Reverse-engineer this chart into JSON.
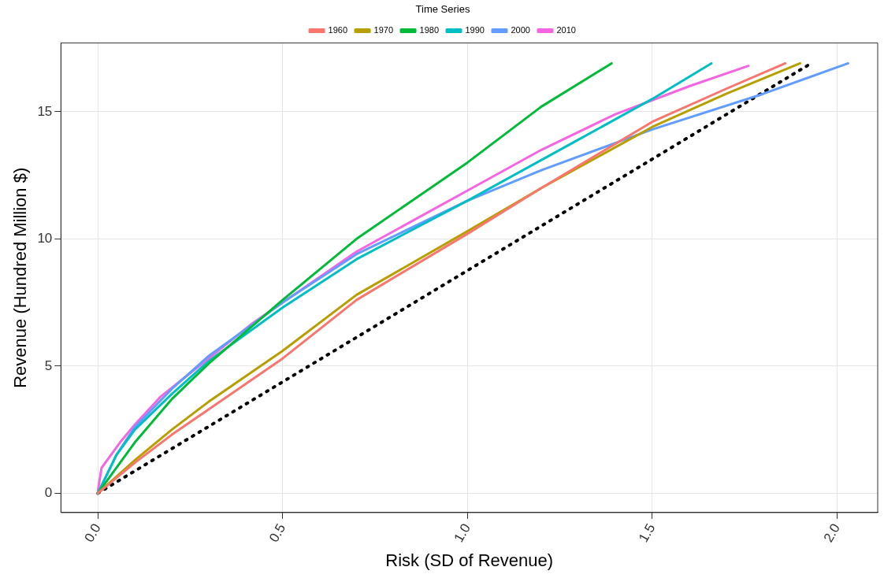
{
  "chart_data": {
    "type": "line",
    "xlabel": "Risk (SD of Revenue)",
    "ylabel": "Revenue (Hundred Million $)",
    "legend_title": "Time Series",
    "legend": "top",
    "grid": true,
    "marker": "none",
    "line_style": "solid",
    "xlim": [
      -0.1,
      2.11
    ],
    "xticks": [
      {
        "value": 0,
        "label": "0.0"
      },
      {
        "value": 0.5,
        "label": "0.5"
      },
      {
        "value": 1,
        "label": "1.0"
      },
      {
        "value": 1.5,
        "label": "1.5"
      },
      {
        "value": 2,
        "label": "2.0"
      }
    ],
    "ylim": [
      -0.76,
      17.7
    ],
    "yticks": [
      0,
      5,
      10,
      15
    ],
    "series": [
      {
        "name": "1960",
        "color": "#f8766d",
        "x": [
          0,
          0.1,
          0.2,
          0.3,
          0.5,
          0.7,
          1.0,
          1.2,
          1.5,
          1.7,
          1.86
        ],
        "values": [
          0,
          1.2,
          2.3,
          3.3,
          5.3,
          7.6,
          10.2,
          12,
          14.6,
          15.9,
          16.9
        ]
      },
      {
        "name": "1970",
        "color": "#b79f00",
        "x": [
          0,
          0.1,
          0.2,
          0.3,
          0.5,
          0.7,
          1.0,
          1.2,
          1.5,
          1.7,
          1.9
        ],
        "values": [
          0,
          1.3,
          2.5,
          3.6,
          5.6,
          7.8,
          10.3,
          12,
          14.4,
          15.7,
          16.9
        ]
      },
      {
        "name": "1980",
        "color": "#00ba38",
        "x": [
          0,
          0.05,
          0.1,
          0.2,
          0.3,
          0.5,
          0.7,
          1.0,
          1.2,
          1.39
        ],
        "values": [
          0,
          1,
          2,
          3.7,
          5.1,
          7.6,
          10,
          13,
          15.2,
          16.9
        ]
      },
      {
        "name": "1990",
        "color": "#00bfc4",
        "x": [
          0,
          0.05,
          0.1,
          0.2,
          0.3,
          0.5,
          0.7,
          1.0,
          1.3,
          1.5,
          1.66
        ],
        "values": [
          0,
          1.5,
          2.5,
          3.9,
          5.2,
          7.3,
          9.2,
          11.5,
          13.9,
          15.5,
          16.9
        ]
      },
      {
        "name": "2000",
        "color": "#619cff",
        "x": [
          0,
          0.05,
          0.1,
          0.2,
          0.3,
          0.5,
          0.7,
          1.0,
          1.2,
          1.5,
          1.8,
          2.03
        ],
        "values": [
          0,
          1.5,
          2.6,
          4.1,
          5.4,
          7.5,
          9.4,
          11.5,
          12.7,
          14.3,
          15.7,
          16.9
        ]
      },
      {
        "name": "2010",
        "color": "#f564e3",
        "x": [
          0,
          0.01,
          0.06,
          0.1,
          0.17,
          0.3,
          0.42,
          0.7,
          1.0,
          1.2,
          1.4,
          1.6,
          1.76
        ],
        "values": [
          0.1,
          1,
          2,
          2.7,
          3.8,
          5.3,
          6.7,
          9.5,
          11.9,
          13.5,
          14.9,
          16,
          16.8
        ]
      },
      {
        "color": "#000000",
        "line_style": "dotted",
        "x": [
          0,
          1.93
        ],
        "values": [
          0,
          16.9
        ]
      }
    ]
  }
}
